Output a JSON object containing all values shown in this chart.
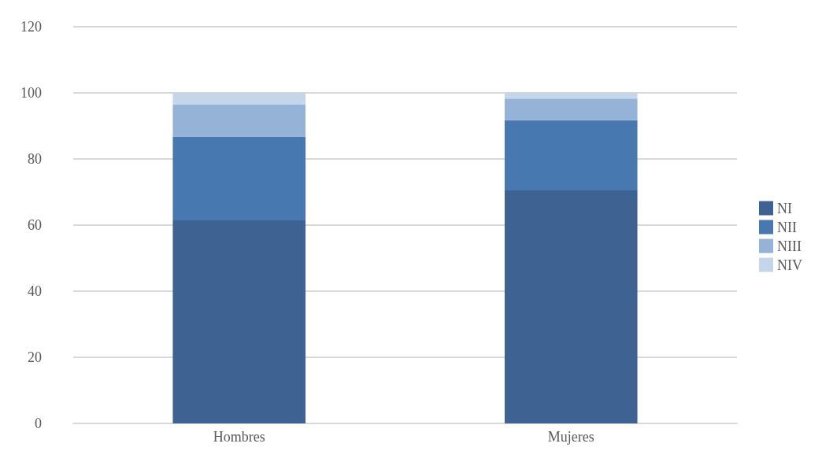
{
  "chart_data": {
    "type": "bar",
    "stacked": true,
    "categories": [
      "Hombres",
      "Mujeres"
    ],
    "series": [
      {
        "name": "NI",
        "color": "#3e6392",
        "values": [
          61.4,
          70.5
        ]
      },
      {
        "name": "NII",
        "color": "#4878b0",
        "values": [
          25.4,
          21.2
        ]
      },
      {
        "name": "NIII",
        "color": "#95b3d7",
        "values": [
          9.6,
          6.6
        ]
      },
      {
        "name": "NIV",
        "color": "#c5d5ea",
        "values": [
          3.6,
          1.7
        ]
      }
    ],
    "ylim": [
      0,
      120
    ],
    "yticks": [
      0,
      20,
      40,
      60,
      80,
      100,
      120
    ],
    "grid": "y",
    "legend": "right"
  }
}
